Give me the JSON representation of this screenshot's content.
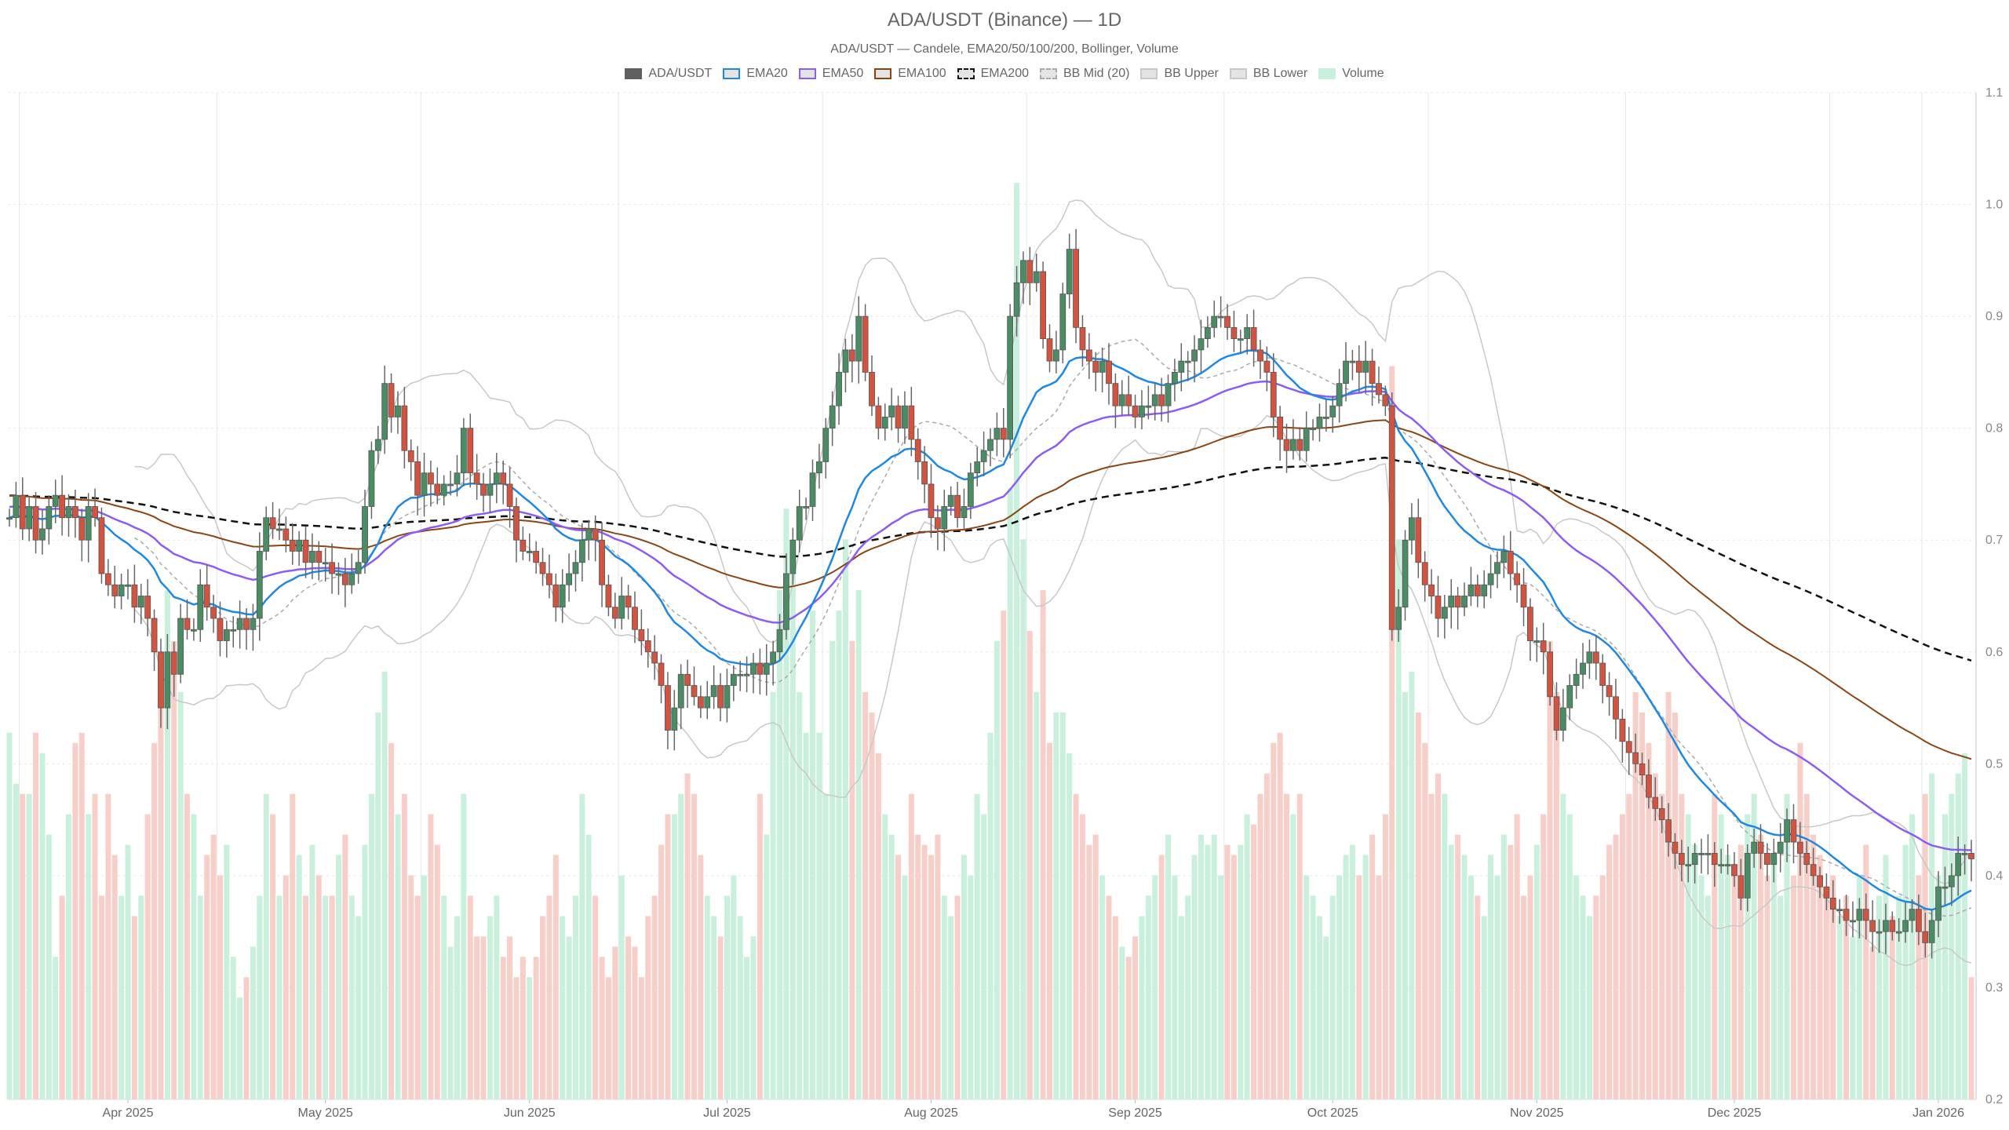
{
  "chart_data": {
    "type": "candlestick",
    "title": "ADA/USDT (Binance) — 1D",
    "subtitle": "ADA/USDT — Candele, EMA20/50/100/200, Bollinger, Volume",
    "legend": [
      {
        "name": "ADA/USDT",
        "color": "#5f5f5f",
        "style": "fill"
      },
      {
        "name": "EMA20",
        "color": "#1e88e5",
        "style": "line"
      },
      {
        "name": "EMA50",
        "color": "#8b5cf6",
        "style": "line"
      },
      {
        "name": "EMA100",
        "color": "#8b4513",
        "style": "line"
      },
      {
        "name": "EMA200",
        "color": "#111111",
        "style": "dashed"
      },
      {
        "name": "BB Mid (20)",
        "color": "#aaaaaa",
        "style": "dashed"
      },
      {
        "name": "BB Upper",
        "color": "#c8c8c8",
        "style": "line"
      },
      {
        "name": "BB Lower",
        "color": "#c8c8c8",
        "style": "line"
      },
      {
        "name": "Volume",
        "color": "#c9f0dc",
        "style": "fill"
      }
    ],
    "legend_position": "top-center",
    "colors": {
      "up": "#4a8c64",
      "down": "#d2533f",
      "vol_up": "#c9f0dc",
      "vol_down": "#f8cfc8",
      "grid": "#e6e6e6"
    },
    "start_date": "2025-03-14",
    "end_date": "2026-01-06",
    "y_axis": {
      "side": "right",
      "ylim": [
        0.2,
        1.1
      ],
      "ticks": [
        "0.2",
        "0.3",
        "0.4",
        "0.5",
        "0.6",
        "0.7",
        "0.8",
        "0.9",
        "1.0",
        "1.1"
      ]
    },
    "x_ticks": [
      {
        "date": "2025-04-01",
        "label": "Apr 2025"
      },
      {
        "date": "2025-05-01",
        "label": "May 2025"
      },
      {
        "date": "2025-06-01",
        "label": "Jun 2025"
      },
      {
        "date": "2025-07-01",
        "label": "Jul 2025"
      },
      {
        "date": "2025-08-01",
        "label": "Aug 2025"
      },
      {
        "date": "2025-09-01",
        "label": "Sep 2025"
      },
      {
        "date": "2025-10-01",
        "label": "Oct 2025"
      },
      {
        "date": "2025-11-01",
        "label": "Nov 2025"
      },
      {
        "date": "2025-12-01",
        "label": "Dec 2025"
      },
      {
        "date": "2026-01-01",
        "label": "Jan 2026"
      }
    ],
    "grid": true,
    "ema200_start": 0.74,
    "close": [
      0.72,
      0.74,
      0.71,
      0.73,
      0.7,
      0.71,
      0.73,
      0.74,
      0.72,
      0.73,
      0.72,
      0.7,
      0.73,
      0.72,
      0.67,
      0.66,
      0.65,
      0.66,
      0.66,
      0.64,
      0.65,
      0.63,
      0.6,
      0.55,
      0.6,
      0.58,
      0.63,
      0.62,
      0.62,
      0.66,
      0.64,
      0.63,
      0.61,
      0.62,
      0.62,
      0.63,
      0.62,
      0.63,
      0.69,
      0.72,
      0.71,
      0.71,
      0.7,
      0.69,
      0.7,
      0.68,
      0.69,
      0.68,
      0.68,
      0.67,
      0.67,
      0.66,
      0.67,
      0.68,
      0.73,
      0.78,
      0.79,
      0.84,
      0.81,
      0.82,
      0.78,
      0.77,
      0.74,
      0.76,
      0.75,
      0.74,
      0.75,
      0.75,
      0.76,
      0.8,
      0.76,
      0.75,
      0.74,
      0.75,
      0.76,
      0.75,
      0.73,
      0.7,
      0.69,
      0.69,
      0.68,
      0.67,
      0.66,
      0.64,
      0.66,
      0.67,
      0.68,
      0.7,
      0.71,
      0.7,
      0.66,
      0.64,
      0.63,
      0.65,
      0.64,
      0.62,
      0.61,
      0.6,
      0.59,
      0.57,
      0.53,
      0.55,
      0.58,
      0.57,
      0.56,
      0.55,
      0.56,
      0.57,
      0.55,
      0.57,
      0.58,
      0.58,
      0.58,
      0.59,
      0.58,
      0.59,
      0.6,
      0.62,
      0.67,
      0.7,
      0.73,
      0.73,
      0.76,
      0.77,
      0.8,
      0.82,
      0.85,
      0.87,
      0.86,
      0.9,
      0.85,
      0.82,
      0.8,
      0.81,
      0.82,
      0.8,
      0.82,
      0.79,
      0.77,
      0.75,
      0.72,
      0.71,
      0.73,
      0.74,
      0.72,
      0.73,
      0.76,
      0.77,
      0.78,
      0.79,
      0.8,
      0.79,
      0.9,
      0.93,
      0.95,
      0.93,
      0.94,
      0.88,
      0.86,
      0.87,
      0.92,
      0.96,
      0.89,
      0.87,
      0.86,
      0.85,
      0.86,
      0.84,
      0.82,
      0.83,
      0.82,
      0.81,
      0.82,
      0.82,
      0.83,
      0.82,
      0.84,
      0.85,
      0.86,
      0.86,
      0.87,
      0.88,
      0.89,
      0.9,
      0.9,
      0.89,
      0.88,
      0.88,
      0.89,
      0.87,
      0.86,
      0.85,
      0.81,
      0.79,
      0.78,
      0.79,
      0.78,
      0.8,
      0.8,
      0.81,
      0.81,
      0.82,
      0.84,
      0.86,
      0.86,
      0.85,
      0.86,
      0.84,
      0.83,
      0.82,
      0.62,
      0.64,
      0.7,
      0.72,
      0.68,
      0.66,
      0.65,
      0.63,
      0.64,
      0.65,
      0.64,
      0.65,
      0.66,
      0.65,
      0.66,
      0.67,
      0.68,
      0.69,
      0.67,
      0.66,
      0.64,
      0.61,
      0.61,
      0.6,
      0.56,
      0.53,
      0.55,
      0.57,
      0.58,
      0.59,
      0.6,
      0.59,
      0.57,
      0.56,
      0.54,
      0.52,
      0.51,
      0.5,
      0.49,
      0.47,
      0.46,
      0.45,
      0.43,
      0.42,
      0.41,
      0.41,
      0.42,
      0.42,
      0.42,
      0.41,
      0.41,
      0.41,
      0.4,
      0.38,
      0.42,
      0.43,
      0.42,
      0.41,
      0.42,
      0.43,
      0.45,
      0.43,
      0.42,
      0.41,
      0.4,
      0.39,
      0.38,
      0.37,
      0.37,
      0.36,
      0.36,
      0.37,
      0.36,
      0.35,
      0.35,
      0.36,
      0.35,
      0.35,
      0.36,
      0.37,
      0.35,
      0.34,
      0.36,
      0.39,
      0.39,
      0.4,
      0.42,
      0.42,
      0.415
    ],
    "volume_relative": [
      36,
      31,
      30,
      30,
      36,
      34,
      26,
      14,
      20,
      28,
      35,
      36,
      28,
      30,
      20,
      30,
      24,
      20,
      25,
      18,
      20,
      28,
      35,
      40,
      50,
      45,
      40,
      30,
      28,
      20,
      24,
      26,
      22,
      25,
      14,
      10,
      12,
      15,
      20,
      30,
      28,
      20,
      22,
      30,
      24,
      20,
      25,
      22,
      20,
      20,
      24,
      26,
      20,
      18,
      25,
      30,
      38,
      42,
      35,
      28,
      30,
      22,
      20,
      22,
      28,
      25,
      20,
      15,
      18,
      30,
      20,
      16,
      16,
      18,
      20,
      14,
      16,
      12,
      14,
      12,
      14,
      18,
      20,
      24,
      18,
      16,
      20,
      30,
      26,
      20,
      14,
      12,
      15,
      22,
      16,
      15,
      12,
      18,
      20,
      25,
      28,
      28,
      30,
      32,
      30,
      24,
      20,
      18,
      16,
      20,
      22,
      18,
      14,
      16,
      30,
      26,
      40,
      50,
      58,
      55,
      40,
      36,
      48,
      36,
      30,
      45,
      48,
      55,
      45,
      50,
      40,
      38,
      34,
      28,
      26,
      24,
      22,
      30,
      26,
      25,
      24,
      26,
      20,
      18,
      20,
      24,
      22,
      30,
      28,
      36,
      45,
      48,
      60,
      90,
      55,
      46,
      40,
      50,
      35,
      38,
      38,
      34,
      30,
      28,
      25,
      26,
      22,
      20,
      18,
      15,
      14,
      16,
      18,
      20,
      22,
      24,
      26,
      22,
      18,
      20,
      24,
      26,
      25,
      26,
      22,
      25,
      24,
      25,
      28,
      27,
      30,
      32,
      35,
      36,
      30,
      28,
      30,
      22,
      20,
      18,
      16,
      20,
      22,
      24,
      25,
      22,
      24,
      26,
      22,
      28,
      72,
      55,
      40,
      42,
      38,
      35,
      30,
      32,
      30,
      25,
      26,
      24,
      22,
      20,
      18,
      24,
      22,
      26,
      25,
      28,
      20,
      22,
      25,
      28,
      45,
      40,
      30,
      28,
      22,
      20,
      18,
      20,
      22,
      25,
      26,
      28,
      30,
      40,
      38,
      35,
      32,
      30,
      40,
      38,
      30,
      28,
      25,
      22,
      20,
      30,
      28,
      24,
      22,
      25,
      28,
      30,
      26,
      22,
      24,
      20,
      30,
      22,
      35,
      30,
      26,
      24,
      20,
      22,
      18,
      20,
      16,
      22,
      25,
      15,
      20,
      24,
      18,
      20,
      25,
      28,
      22,
      30,
      32,
      22,
      28,
      30,
      32,
      34,
      12
    ]
  }
}
